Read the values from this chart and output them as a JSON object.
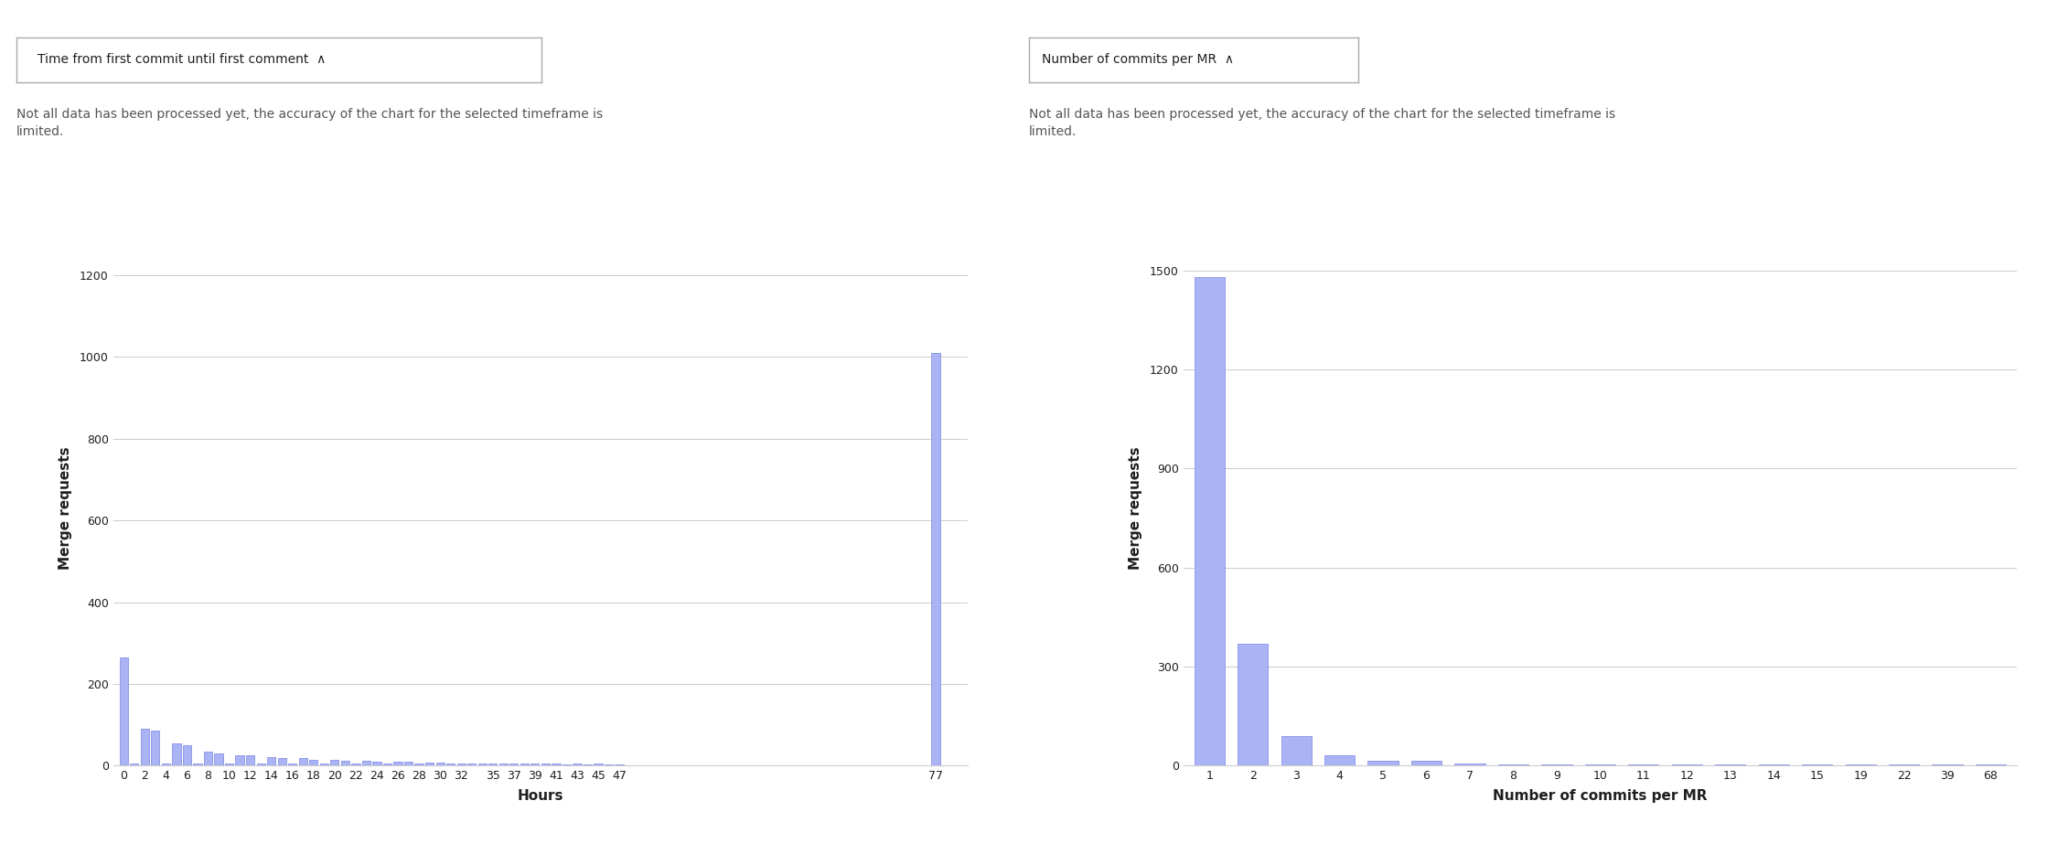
{
  "left_warning": "Not all data has been processed yet, the accuracy of the chart for the selected timeframe is\nlimited.",
  "left_xlabel": "Hours",
  "left_ylabel": "Merge requests",
  "left_yticks": [
    0,
    200,
    400,
    600,
    800,
    1000,
    1200
  ],
  "left_ylim": [
    0,
    1260
  ],
  "left_bars": {
    "0": 265,
    "1": 5,
    "2": 90,
    "3": 85,
    "4": 5,
    "5": 55,
    "6": 50,
    "7": 5,
    "8": 33,
    "9": 30,
    "10": 5,
    "11": 25,
    "12": 25,
    "13": 5,
    "14": 20,
    "15": 18,
    "16": 5,
    "17": 18,
    "18": 15,
    "19": 5,
    "20": 14,
    "21": 12,
    "22": 5,
    "23": 12,
    "24": 10,
    "25": 5,
    "26": 10,
    "27": 9,
    "28": 5,
    "29": 8,
    "30": 7,
    "31": 5,
    "32": 6,
    "33": 5,
    "34": 5,
    "35": 5,
    "36": 4,
    "37": 5,
    "38": 4,
    "39": 5,
    "40": 4,
    "41": 5,
    "42": 3,
    "43": 4,
    "44": 3,
    "45": 4,
    "46": 3,
    "47": 3,
    "77": 1010
  },
  "left_xtick_labels": [
    "0",
    "2",
    "4",
    "6",
    "8",
    "10",
    "12",
    "14",
    "16",
    "18",
    "20",
    "22",
    "24",
    "26",
    "28",
    "30",
    "32",
    "35",
    "37",
    "39",
    "41",
    "43",
    "45",
    "47",
    "77"
  ],
  "left_xtick_positions": [
    0,
    2,
    4,
    6,
    8,
    10,
    12,
    14,
    16,
    18,
    20,
    22,
    24,
    26,
    28,
    30,
    32,
    35,
    37,
    39,
    41,
    43,
    45,
    47,
    77
  ],
  "right_warning": "Not all data has been processed yet, the accuracy of the chart for the selected timeframe is\nlimited.",
  "right_xlabel": "Number of commits per MR",
  "right_ylabel": "Merge requests",
  "right_yticks": [
    0,
    300,
    600,
    900,
    1200,
    1500
  ],
  "right_ylim": [
    0,
    1560
  ],
  "right_cat_labels": [
    "1",
    "2",
    "3",
    "4",
    "5",
    "6",
    "7",
    "8",
    "9",
    "10",
    "11",
    "12",
    "13",
    "14",
    "15",
    "19",
    "22",
    "39",
    "68"
  ],
  "right_values": [
    1480,
    370,
    90,
    30,
    15,
    15,
    5,
    4,
    3,
    3,
    3,
    3,
    2,
    2,
    2,
    2,
    2,
    2,
    2
  ],
  "bar_color": "#aab4f5",
  "bar_edge_color": "#8892e8",
  "bg_color": "#ffffff",
  "grid_color": "#cccccc",
  "text_color": "#1f1f1f",
  "warning_color": "#555555",
  "dropdown_bg": "#ffffff",
  "dropdown_border": "#aaaaaa",
  "font_size_axis_label": 11,
  "font_size_tick": 9,
  "font_size_warning": 10,
  "font_size_dropdown": 10
}
